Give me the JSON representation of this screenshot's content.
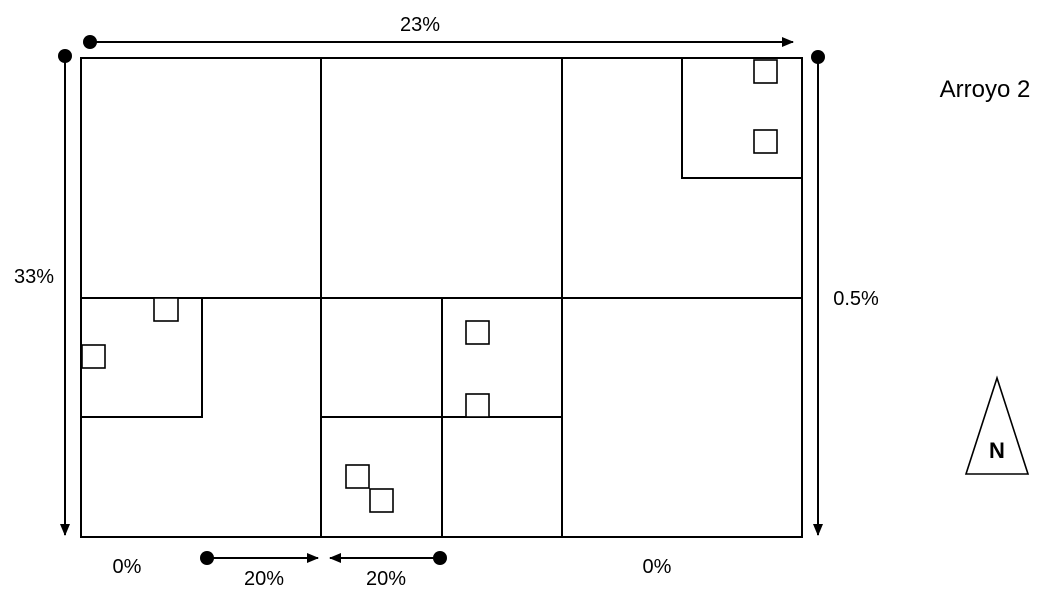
{
  "title": "Arroyo 2",
  "labels": {
    "top_slope": "23%",
    "left_slope": "33%",
    "right_slope": "0.5%",
    "bottom_left": "0%",
    "bottom_mid_left": "20%",
    "bottom_mid_right": "20%",
    "bottom_right": "0%"
  },
  "compass": {
    "letter": "N",
    "icon": "north-arrow-icon"
  },
  "colors": {
    "stroke": "#000000",
    "background": "#ffffff"
  }
}
